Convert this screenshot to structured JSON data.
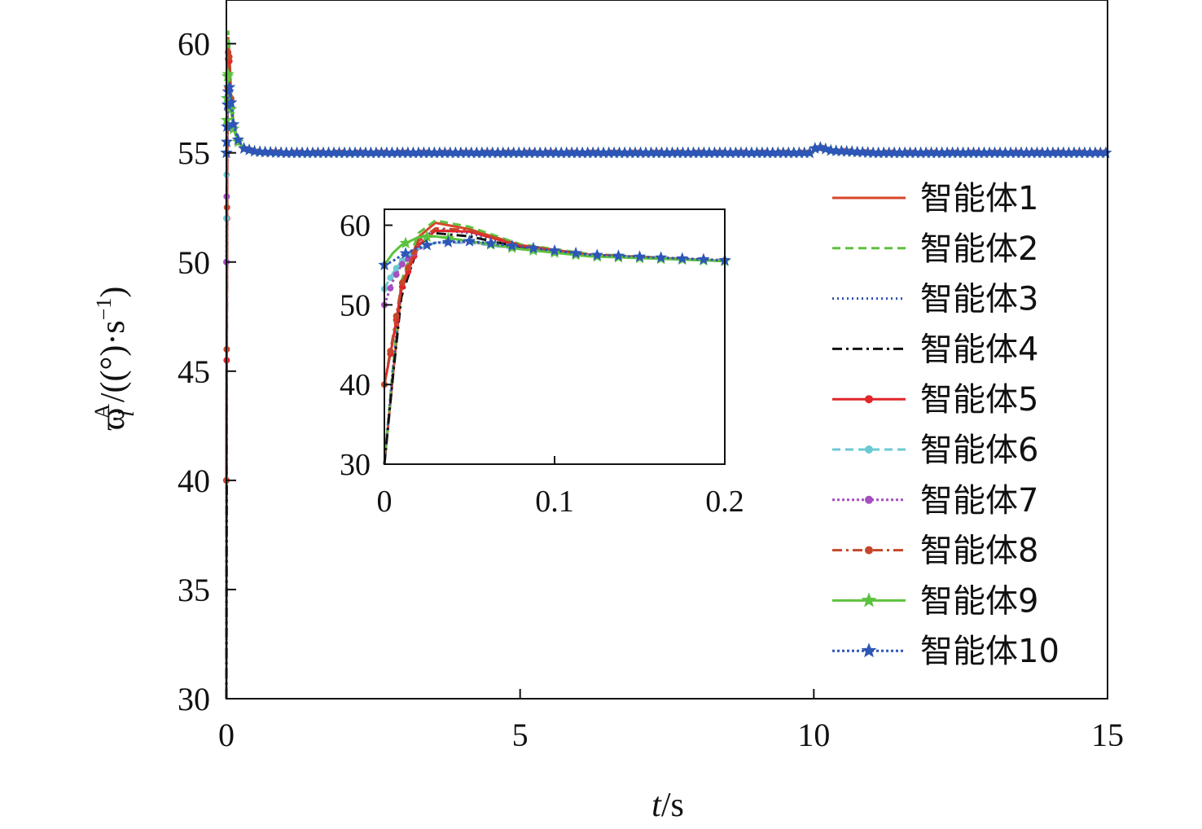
{
  "chart_data": [
    {
      "type": "line",
      "xlabel_var": "t",
      "xlabel_unit": "/s",
      "ylabel_symbol": "ϖ",
      "ylabel_sub": "i",
      "ylabel_sup": "A",
      "ylabel_unit": "/((°)·s",
      "ylabel_unit_sup": "−1",
      "ylabel_close": ")",
      "xlim": [
        0,
        15
      ],
      "ylim": [
        30,
        62
      ],
      "xticks": [
        0,
        5,
        10,
        15
      ],
      "yticks": [
        30,
        35,
        40,
        45,
        50,
        55,
        60
      ],
      "xtick_labels": [
        "0",
        "5",
        "10",
        "15"
      ],
      "ytick_labels": [
        "30",
        "35",
        "40",
        "45",
        "50",
        "55",
        "60"
      ],
      "legend_position": "right",
      "series": [
        {
          "name": "智能体1",
          "color": "#d9452b",
          "dash": "",
          "marker": "none",
          "x": [
            0,
            0.005,
            0.01,
            0.02,
            0.03,
            0.05,
            0.08,
            0.12,
            0.2,
            0.3,
            0.5,
            1,
            2,
            5,
            9.98,
            10.02,
            10.1,
            10.3,
            11,
            15
          ],
          "y": [
            30,
            41,
            52,
            58.5,
            60.3,
            59.5,
            57.5,
            56.3,
            55.5,
            55.2,
            55.05,
            55,
            55,
            55,
            55,
            55.2,
            55.25,
            55.1,
            55,
            55
          ]
        },
        {
          "name": "智能体2",
          "color": "#5fc13e",
          "dash": "10,6",
          "marker": "none",
          "x": [
            0,
            0.005,
            0.01,
            0.02,
            0.03,
            0.05,
            0.08,
            0.12,
            0.2,
            0.3,
            0.5,
            1,
            2,
            5,
            9.98,
            10.02,
            10.1,
            10.3,
            11,
            15
          ],
          "y": [
            30,
            42,
            53,
            59,
            60.6,
            59.8,
            57.6,
            56.4,
            55.5,
            55.2,
            55.05,
            55,
            55,
            55,
            55,
            55.2,
            55.25,
            55.1,
            55,
            55
          ]
        },
        {
          "name": "智能体3",
          "color": "#2e4fb5",
          "dash": "2,4",
          "marker": "none",
          "x": [
            0,
            0.005,
            0.01,
            0.02,
            0.03,
            0.05,
            0.08,
            0.12,
            0.2,
            0.3,
            0.5,
            1,
            2,
            5,
            9.98,
            10.02,
            10.1,
            10.3,
            11,
            15
          ],
          "y": [
            30,
            42,
            52,
            58,
            59.5,
            59,
            57.3,
            56.3,
            55.5,
            55.2,
            55.05,
            55,
            55,
            55,
            55,
            55.2,
            55.25,
            55.1,
            55,
            55
          ]
        },
        {
          "name": "智能体4",
          "color": "#111111",
          "dash": "12,5,3,5",
          "marker": "none",
          "x": [
            0,
            0.005,
            0.01,
            0.02,
            0.03,
            0.05,
            0.08,
            0.12,
            0.2,
            0.3,
            0.5,
            1,
            2,
            5,
            9.98,
            10.02,
            10.1,
            10.3,
            11,
            15
          ],
          "y": [
            30,
            41,
            51,
            57.5,
            59,
            58.6,
            57.2,
            56.2,
            55.5,
            55.2,
            55.05,
            55,
            55,
            55,
            55,
            55.2,
            55.25,
            55.1,
            55,
            55
          ]
        },
        {
          "name": "智能体5",
          "color": "#e0262b",
          "dash": "",
          "marker": "dot",
          "x": [
            0,
            0.005,
            0.01,
            0.02,
            0.03,
            0.05,
            0.08,
            0.12,
            0.2,
            0.3,
            0.5,
            1,
            2,
            5,
            9.98,
            10.02,
            10.1,
            10.3,
            11,
            15
          ],
          "y": [
            40,
            45.5,
            52,
            57.5,
            59.3,
            59.2,
            57.4,
            56.3,
            55.5,
            55.2,
            55.05,
            55,
            55,
            55,
            55,
            55.2,
            55.25,
            55.1,
            55,
            55
          ]
        },
        {
          "name": "智能体6",
          "color": "#6cc9d3",
          "dash": "10,6",
          "marker": "dot",
          "x": [
            0,
            0.005,
            0.01,
            0.02,
            0.03,
            0.05,
            0.08,
            0.12,
            0.2,
            0.3,
            0.5,
            1,
            2,
            5,
            9.98,
            10.02,
            10.1,
            10.3,
            11,
            15
          ],
          "y": [
            52,
            54,
            55.5,
            57,
            57.8,
            57.8,
            57,
            56.2,
            55.5,
            55.2,
            55.05,
            55,
            55,
            55,
            55,
            55.2,
            55.25,
            55.1,
            55,
            55
          ]
        },
        {
          "name": "智能体7",
          "color": "#a64fc0",
          "dash": "3,3",
          "marker": "dot",
          "x": [
            0,
            0.005,
            0.01,
            0.02,
            0.03,
            0.05,
            0.08,
            0.12,
            0.2,
            0.3,
            0.5,
            1,
            2,
            5,
            9.98,
            10.02,
            10.1,
            10.3,
            11,
            15
          ],
          "y": [
            50,
            53,
            55,
            57,
            57.8,
            57.9,
            57,
            56.2,
            55.5,
            55.2,
            55.05,
            55,
            55,
            55,
            55,
            55.2,
            55.25,
            55.1,
            55,
            55
          ]
        },
        {
          "name": "智能体8",
          "color": "#c5462b",
          "dash": "12,5,3,5",
          "marker": "dot",
          "x": [
            0,
            0.005,
            0.01,
            0.02,
            0.03,
            0.05,
            0.08,
            0.12,
            0.2,
            0.3,
            0.5,
            1,
            2,
            5,
            9.98,
            10.02,
            10.1,
            10.3,
            11,
            15
          ],
          "y": [
            40,
            46,
            52.5,
            58,
            59.6,
            59.4,
            57.5,
            56.3,
            55.5,
            55.2,
            55.05,
            55,
            55,
            55,
            55,
            55.2,
            55.25,
            55.1,
            55,
            55
          ]
        },
        {
          "name": "智能体9",
          "color": "#5cc23d",
          "dash": "",
          "marker": "star",
          "x": [
            0,
            0.005,
            0.01,
            0.02,
            0.03,
            0.05,
            0.08,
            0.12,
            0.2,
            0.3,
            0.5,
            1,
            2,
            5,
            9.98,
            10.02,
            10.1,
            10.3,
            11,
            15
          ],
          "y": [
            55,
            56.5,
            57.5,
            58.5,
            58.6,
            58,
            57,
            56.1,
            55.5,
            55.2,
            55.05,
            55,
            55,
            55,
            55,
            55.2,
            55.25,
            55.1,
            55,
            55
          ]
        },
        {
          "name": "智能体10",
          "color": "#2d56b8",
          "dash": "3,3",
          "marker": "star",
          "x": [
            0,
            0.005,
            0.01,
            0.02,
            0.03,
            0.05,
            0.08,
            0.12,
            0.2,
            0.3,
            0.5,
            1,
            2,
            5,
            9.98,
            10.02,
            10.1,
            10.3,
            11,
            15
          ],
          "y": [
            55,
            55.5,
            56.2,
            57.2,
            57.8,
            58,
            57.3,
            56.3,
            55.6,
            55.2,
            55.05,
            55,
            55,
            55,
            55,
            55.2,
            55.25,
            55.1,
            55,
            55
          ]
        }
      ]
    },
    {
      "type": "line",
      "inset": true,
      "xlim": [
        0,
        0.2
      ],
      "ylim": [
        30,
        62
      ],
      "xticks": [
        0,
        0.1,
        0.2
      ],
      "yticks": [
        30,
        40,
        50,
        60
      ],
      "xtick_labels": [
        "0",
        "0.1",
        "0.2"
      ],
      "ytick_labels": [
        "30",
        "40",
        "50",
        "60"
      ],
      "series_from_main": true
    }
  ]
}
